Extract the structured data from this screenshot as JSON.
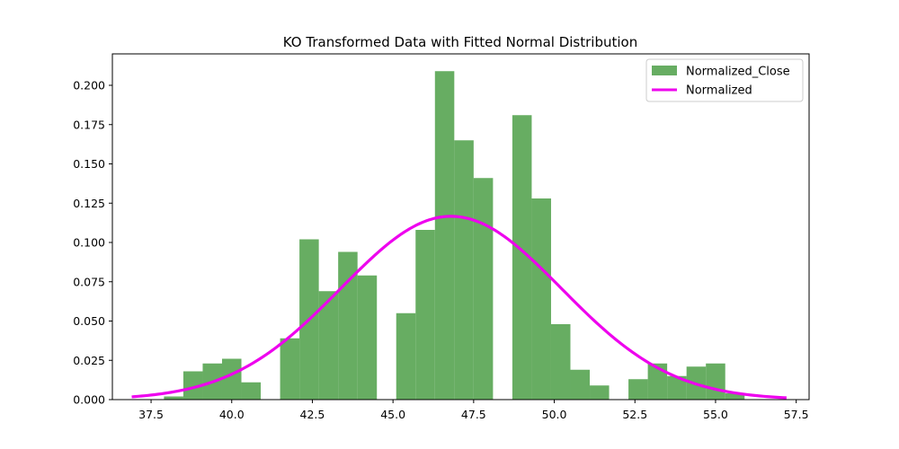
{
  "chart_data": {
    "type": "bar",
    "title": "KO Transformed Data with Fitted Normal Distribution",
    "xlabel": "",
    "ylabel": "",
    "xlim": [
      36.3,
      57.9
    ],
    "ylim": [
      0,
      0.22
    ],
    "grid": false,
    "legend_placement": "top-right",
    "x_ticks": [
      37.5,
      40.0,
      42.5,
      45.0,
      47.5,
      50.0,
      52.5,
      55.0,
      57.5
    ],
    "x_tick_labels": [
      "37.5",
      "40.0",
      "42.5",
      "45.0",
      "47.5",
      "50.0",
      "52.5",
      "55.0",
      "57.5"
    ],
    "y_ticks": [
      0.0,
      0.025,
      0.05,
      0.075,
      0.1,
      0.125,
      0.15,
      0.175,
      0.2
    ],
    "y_tick_labels": [
      "0.000",
      "0.025",
      "0.050",
      "0.075",
      "0.100",
      "0.125",
      "0.150",
      "0.175",
      "0.200"
    ],
    "histogram": {
      "name": "Normalized_Close",
      "color": "#4c9f47",
      "bin_edges": [
        37.9,
        38.5,
        39.1,
        39.7,
        40.3,
        40.9,
        41.5,
        42.1,
        42.7,
        43.3,
        43.9,
        44.5,
        45.1,
        45.7,
        46.3,
        46.9,
        47.5,
        48.1,
        48.7,
        49.3,
        49.9,
        50.5,
        51.1,
        51.7,
        52.3,
        52.9,
        53.5,
        54.1,
        54.7,
        55.3,
        55.9,
        56.5
      ],
      "values": [
        0.002,
        0.018,
        0.023,
        0.026,
        0.011,
        0.0,
        0.039,
        0.102,
        0.069,
        0.094,
        0.079,
        0.0,
        0.055,
        0.108,
        0.209,
        0.165,
        0.141,
        0.0,
        0.181,
        0.128,
        0.048,
        0.019,
        0.009,
        0.0,
        0.013,
        0.023,
        0.015,
        0.021,
        0.023,
        0.004,
        0.0
      ]
    },
    "fit_curve": {
      "name": "Normalized",
      "type": "line",
      "color": "#ee00ee",
      "distribution": "normal",
      "mean": 46.8,
      "std": 3.42,
      "x_range": [
        36.9,
        57.2
      ]
    }
  }
}
